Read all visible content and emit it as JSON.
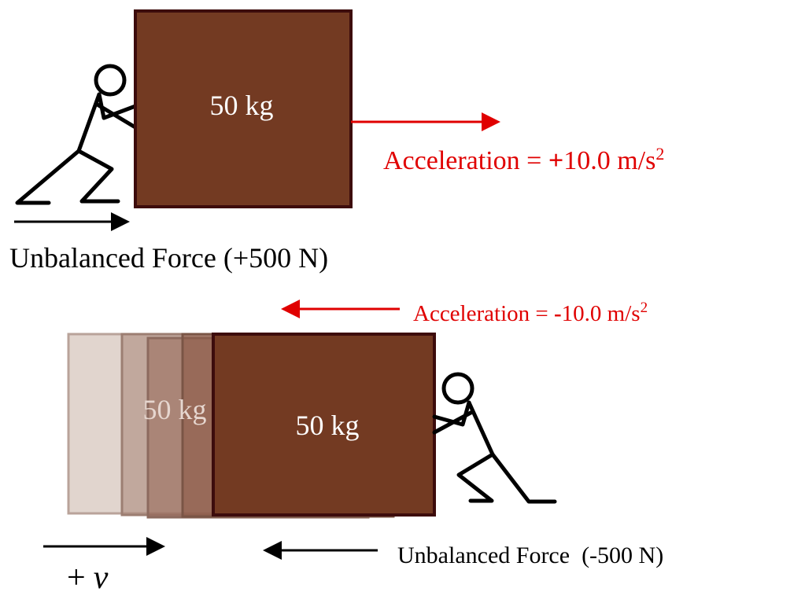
{
  "top": {
    "box_label": "50 kg",
    "acceleration": {
      "prefix": "Acceleration = ",
      "sign": "+",
      "value": "10.0 m/s",
      "exponent": "2"
    },
    "force": "Unbalanced Force (+500 N)"
  },
  "bottom": {
    "ghost_label": "50 kg",
    "box_label": "50 kg",
    "acceleration": {
      "prefix": "Acceleration = ",
      "sign": "-",
      "value": "10.0 m/s",
      "exponent": "2"
    },
    "force": "Unbalanced Force  (-500 N)",
    "velocity": {
      "sign": "+",
      "symbol": "v"
    }
  }
}
